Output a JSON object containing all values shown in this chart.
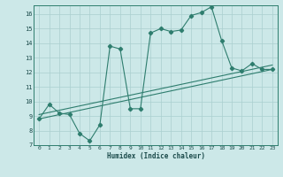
{
  "xlabel": "Humidex (Indice chaleur)",
  "bg_color": "#cce8e8",
  "grid_color": "#aacfcf",
  "line_color": "#2e7d6e",
  "xlim": [
    -0.5,
    23.5
  ],
  "ylim": [
    7,
    16.6
  ],
  "yticks": [
    7,
    8,
    9,
    10,
    11,
    12,
    13,
    14,
    15,
    16
  ],
  "xticks": [
    0,
    1,
    2,
    3,
    4,
    5,
    6,
    7,
    8,
    9,
    10,
    11,
    12,
    13,
    14,
    15,
    16,
    17,
    18,
    19,
    20,
    21,
    22,
    23
  ],
  "line1_x": [
    0,
    1,
    2,
    3,
    4,
    5,
    6,
    7,
    8,
    9,
    10,
    11,
    12,
    13,
    14,
    15,
    16,
    17,
    18,
    19,
    20,
    21,
    22,
    23
  ],
  "line1_y": [
    8.8,
    9.8,
    9.2,
    9.1,
    7.8,
    7.3,
    8.4,
    13.8,
    13.6,
    9.5,
    9.5,
    14.7,
    15.0,
    14.8,
    14.9,
    15.9,
    16.1,
    16.5,
    14.2,
    12.3,
    12.1,
    12.6,
    12.2,
    12.2
  ],
  "line2_x": [
    0,
    23
  ],
  "line2_y": [
    8.8,
    12.2
  ],
  "line3_x": [
    0,
    23
  ],
  "line3_y": [
    9.1,
    12.5
  ]
}
